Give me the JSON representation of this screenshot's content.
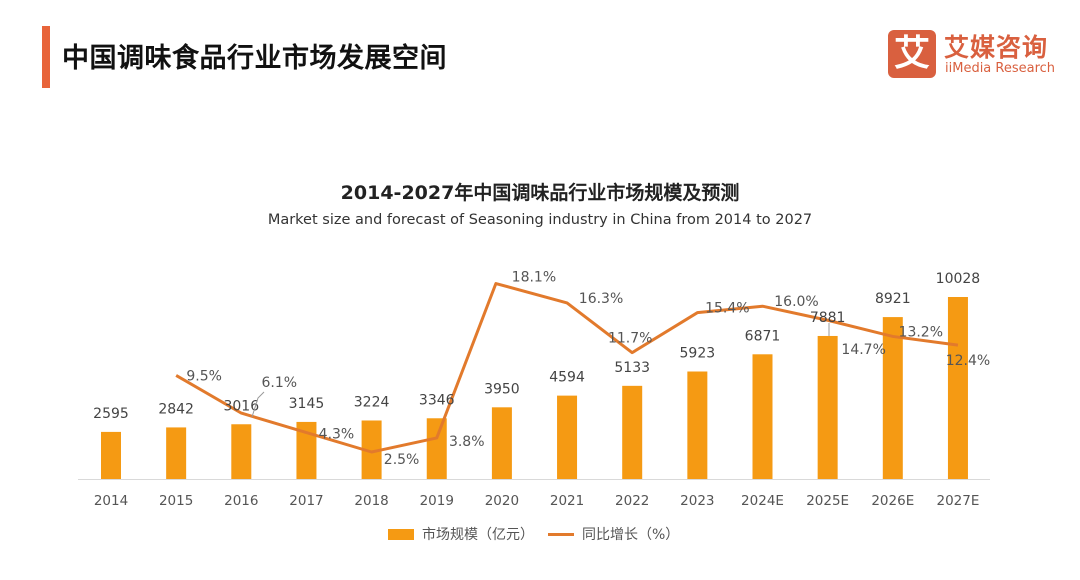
{
  "header": {
    "title": "中国调味食品行业市场发展空间",
    "accent_color": "#e8643a"
  },
  "logo": {
    "icon_char": "艾",
    "name_cn": "艾媒咨询",
    "name_en": "iiMedia Research",
    "brand_color": "#d9603f"
  },
  "chart_data": {
    "type": "bar",
    "title": "2014-2027年中国调味品行业市场规模及预测",
    "subtitle": "Market size and forecast of Seasoning industry in China from 2014 to 2027",
    "xlabel": "",
    "ylabel": "",
    "grid": false,
    "legend_position": "bottom-center",
    "categories": [
      "2014",
      "2015",
      "2016",
      "2017",
      "2018",
      "2019",
      "2020",
      "2021",
      "2022",
      "2023",
      "2024E",
      "2025E",
      "2026E",
      "2027E"
    ],
    "series": [
      {
        "name": "市场规模（亿元）",
        "type": "bar",
        "color": "#f59a13",
        "values": [
          2595,
          2842,
          3016,
          3145,
          3224,
          3346,
          3950,
          4594,
          5133,
          5923,
          6871,
          7881,
          8921,
          10028
        ],
        "labels": [
          "2595",
          "2842",
          "3016",
          "3145",
          "3224",
          "3346",
          "3950",
          "4594",
          "5133",
          "5923",
          "6871",
          "7881",
          "8921",
          "10028"
        ]
      },
      {
        "name": "同比增长（%）",
        "type": "line",
        "color": "#e27a2c",
        "values": [
          null,
          9.5,
          6.1,
          4.3,
          2.5,
          3.8,
          18.1,
          16.3,
          11.7,
          15.4,
          16.0,
          14.7,
          13.2,
          12.4
        ],
        "labels": [
          "",
          "9.5%",
          "6.1%",
          "4.3%",
          "2.5%",
          "3.8%",
          "18.1%",
          "16.3%",
          "11.7%",
          "15.4%",
          "16.0%",
          "14.7%",
          "13.2%",
          "12.4%"
        ]
      }
    ]
  }
}
